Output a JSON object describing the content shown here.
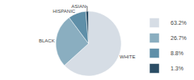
{
  "chart_data": {
    "type": "pie",
    "categories": [
      "WHITE",
      "BLACK",
      "HISPANIC",
      "ASIAN"
    ],
    "values": [
      63.2,
      26.7,
      8.8,
      1.3
    ],
    "value_labels": [
      "63.2%",
      "26.7%",
      "8.8%",
      "1.3%"
    ],
    "colors": [
      "#d6dde5",
      "#8aaec0",
      "#5f8fa8",
      "#2b4d65"
    ],
    "legend": "right"
  }
}
